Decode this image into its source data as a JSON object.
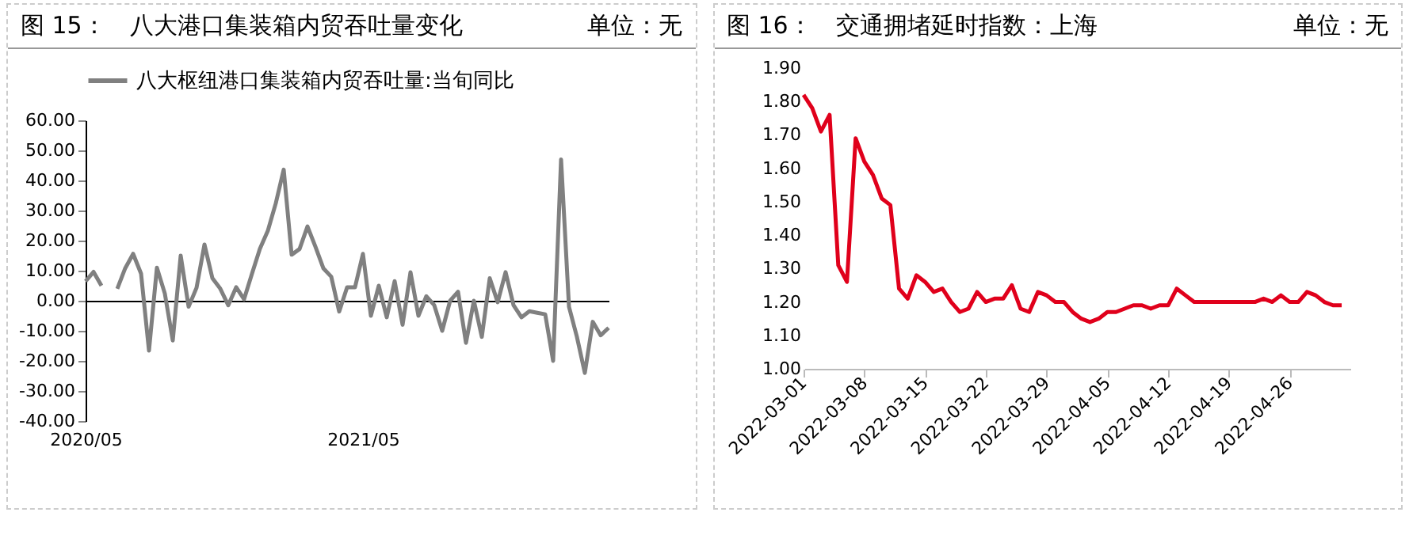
{
  "chart_data": [
    {
      "type": "line",
      "title": "图 15：　八大港口集装箱内贸吞吐量变化",
      "annotations": [
        "单位：无"
      ],
      "categories": [
        "2020/05",
        null,
        null,
        null,
        null,
        null,
        null,
        null,
        null,
        null,
        null,
        null,
        null,
        null,
        null,
        null,
        null,
        null,
        null,
        null,
        null,
        null,
        null,
        null,
        null,
        null,
        null,
        null,
        null,
        null,
        null,
        null,
        null,
        null,
        null,
        "2021/05",
        null,
        null,
        null,
        null,
        null,
        null,
        null,
        null,
        null,
        null,
        null,
        null,
        null,
        null,
        null,
        null,
        null,
        null,
        null,
        null,
        null,
        null,
        null,
        null,
        null,
        null,
        null,
        null,
        null,
        null,
        null
      ],
      "series": [
        {
          "name": "八大枢纽港口集装箱内贸吞吐量:当旬同比",
          "color": "#808080",
          "values": [
            6.5,
            9.6,
            5,
            null,
            4,
            10.8,
            15.6,
            9,
            -16.6,
            11,
            2.4,
            -13.2,
            15,
            -2,
            4.3,
            18.7,
            7.5,
            4,
            -1.5,
            4.5,
            0.5,
            9,
            17.3,
            23.3,
            32.4,
            43.6,
            15.3,
            17.2,
            24.7,
            18,
            10.8,
            8,
            -3.6,
            4.5,
            4.5,
            15.6,
            -5,
            5,
            -5.5,
            6.5,
            -8,
            9.5,
            -5,
            1.5,
            -1.5,
            -10,
            0,
            3,
            -14,
            0,
            -12,
            7.5,
            -0.5,
            9.5,
            -1.5,
            -5.5,
            -3.5,
            -4,
            -4.5,
            -20,
            47,
            -2,
            -12,
            -24,
            -7,
            -11.5,
            -9
          ]
        }
      ],
      "ylim": [
        -40,
        60
      ],
      "yticks": [
        {
          "value": -40,
          "label": "-40.00"
        },
        {
          "value": -30,
          "label": "-30.00"
        },
        {
          "value": -20,
          "label": "-20.00"
        },
        {
          "value": -10,
          "label": "-10.00"
        },
        {
          "value": 0,
          "label": "0.00"
        },
        {
          "value": 10,
          "label": "10.00"
        },
        {
          "value": 20,
          "label": "20.00"
        },
        {
          "value": 30,
          "label": "30.00"
        },
        {
          "value": 40,
          "label": "40.00"
        },
        {
          "value": 50,
          "label": "50.00"
        },
        {
          "value": 60,
          "label": "60.00"
        }
      ],
      "legend": "top",
      "line_style": "solid"
    },
    {
      "type": "line",
      "title": "图 16：　交通拥堵延时指数：上海",
      "annotations": [
        "单位：无"
      ],
      "x": [
        "2022-03-01",
        "2022-03-02",
        "2022-03-03",
        "2022-03-04",
        "2022-03-05",
        "2022-03-06",
        "2022-03-07",
        "2022-03-08",
        "2022-03-09",
        "2022-03-10",
        "2022-03-11",
        "2022-03-12",
        "2022-03-13",
        "2022-03-14",
        "2022-03-15",
        "2022-03-16",
        "2022-03-17",
        "2022-03-18",
        "2022-03-19",
        "2022-03-20",
        "2022-03-21",
        "2022-03-22",
        "2022-03-23",
        "2022-03-24",
        "2022-03-25",
        "2022-03-26",
        "2022-03-27",
        "2022-03-28",
        "2022-03-29",
        "2022-03-30",
        "2022-03-31",
        "2022-04-01",
        "2022-04-02",
        "2022-04-03",
        "2022-04-04",
        "2022-04-05",
        "2022-04-06",
        "2022-04-07",
        "2022-04-08",
        "2022-04-09",
        "2022-04-10",
        "2022-04-11",
        "2022-04-12",
        "2022-04-13",
        "2022-04-14",
        "2022-04-15",
        "2022-04-16",
        "2022-04-17",
        "2022-04-18",
        "2022-04-19",
        "2022-04-20",
        "2022-04-21",
        "2022-04-22",
        "2022-04-23",
        "2022-04-24",
        "2022-04-25",
        "2022-04-26",
        "2022-04-27",
        "2022-04-28",
        "2022-04-29",
        "2022-04-30",
        "2022-05-01",
        "2022-05-02"
      ],
      "series": [
        {
          "color": "#e0001b",
          "values": [
            1.82,
            1.78,
            1.71,
            1.76,
            1.31,
            1.26,
            1.69,
            1.62,
            1.58,
            1.51,
            1.49,
            1.24,
            1.21,
            1.28,
            1.26,
            1.23,
            1.24,
            1.2,
            1.17,
            1.18,
            1.23,
            1.2,
            1.21,
            1.21,
            1.25,
            1.18,
            1.17,
            1.23,
            1.22,
            1.2,
            1.2,
            1.17,
            1.15,
            1.14,
            1.15,
            1.17,
            1.17,
            1.18,
            1.19,
            1.19,
            1.18,
            1.19,
            1.19,
            1.24,
            1.22,
            1.2,
            1.2,
            1.2,
            1.2,
            1.2,
            1.2,
            1.2,
            1.2,
            1.21,
            1.2,
            1.22,
            1.2,
            1.2,
            1.23,
            1.22,
            1.2,
            1.19,
            1.19
          ]
        }
      ],
      "xlim": [
        "2022-03-01",
        "2022-05-03"
      ],
      "xticks": [
        "2022-03-01",
        "2022-03-08",
        "2022-03-15",
        "2022-03-22",
        "2022-03-29",
        "2022-04-05",
        "2022-04-12",
        "2022-04-19",
        "2022-04-26"
      ],
      "ylim": [
        1.0,
        1.9
      ],
      "yticks": [
        {
          "value": 1.0,
          "label": "1.00"
        },
        {
          "value": 1.1,
          "label": "1.10"
        },
        {
          "value": 1.2,
          "label": "1.20"
        },
        {
          "value": 1.3,
          "label": "1.30"
        },
        {
          "value": 1.4,
          "label": "1.40"
        },
        {
          "value": 1.5,
          "label": "1.50"
        },
        {
          "value": 1.6,
          "label": "1.60"
        },
        {
          "value": 1.7,
          "label": "1.70"
        },
        {
          "value": 1.8,
          "label": "1.80"
        },
        {
          "value": 1.9,
          "label": "1.90"
        }
      ],
      "line_style": "solid"
    }
  ]
}
